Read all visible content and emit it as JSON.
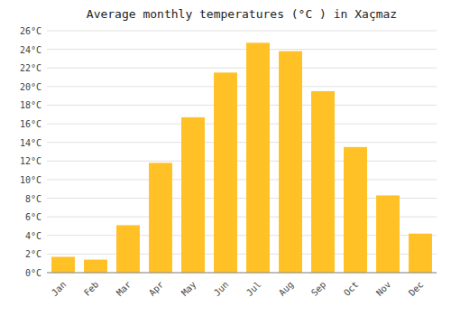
{
  "chart_data": {
    "type": "bar",
    "title": "Average monthly temperatures (°C ) in Xaçmaz",
    "categories": [
      "Jan",
      "Feb",
      "Mar",
      "Apr",
      "May",
      "Jun",
      "Jul",
      "Aug",
      "Sep",
      "Oct",
      "Nov",
      "Dec"
    ],
    "values": [
      1.7,
      1.4,
      5.1,
      11.8,
      16.7,
      21.5,
      24.7,
      23.8,
      19.5,
      13.5,
      8.3,
      4.2
    ],
    "color": "#FFC125",
    "ylim": [
      0,
      26
    ],
    "yticks": [
      {
        "value": 0,
        "label": "0°C"
      },
      {
        "value": 2,
        "label": "2°C"
      },
      {
        "value": 4,
        "label": "4°C"
      },
      {
        "value": 6,
        "label": "6°C"
      },
      {
        "value": 8,
        "label": "8°C"
      },
      {
        "value": 10,
        "label": "10°C"
      },
      {
        "value": 12,
        "label": "12°C"
      },
      {
        "value": 14,
        "label": "14°C"
      },
      {
        "value": 16,
        "label": "16°C"
      },
      {
        "value": 18,
        "label": "18°C"
      },
      {
        "value": 20,
        "label": "20°C"
      },
      {
        "value": 22,
        "label": "22°C"
      },
      {
        "value": 24,
        "label": "24°C"
      },
      {
        "value": 26,
        "label": "26°C"
      }
    ],
    "grid": true
  }
}
